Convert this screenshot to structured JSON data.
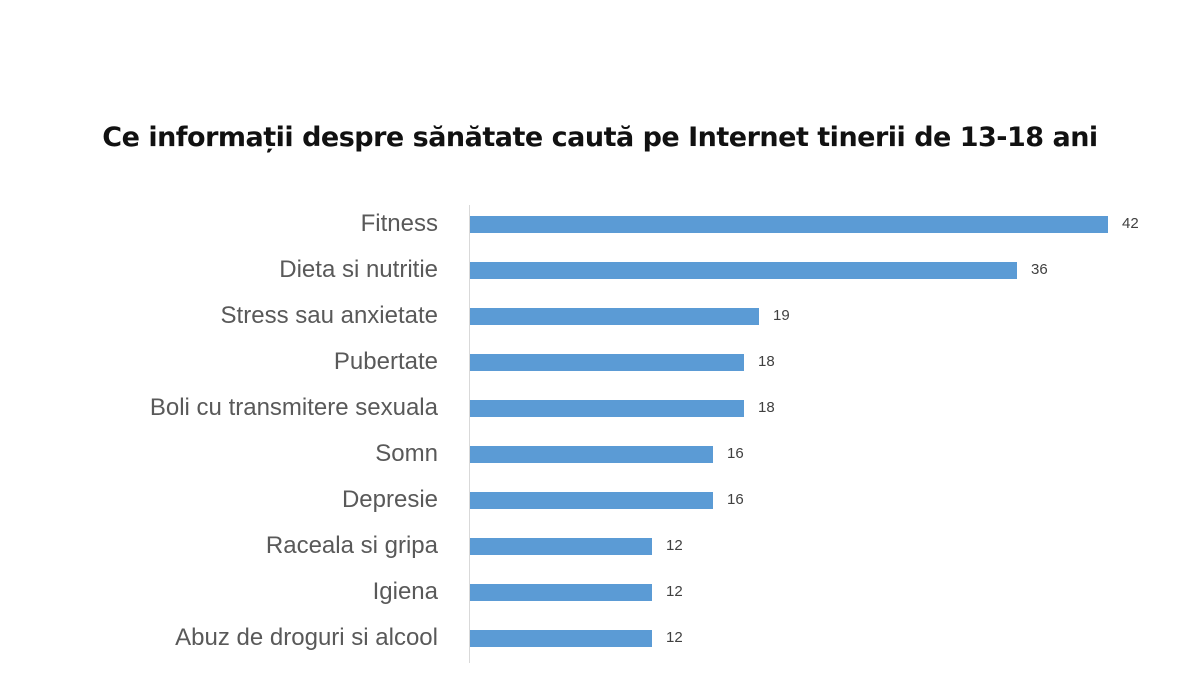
{
  "chart_data": {
    "type": "bar",
    "orientation": "horizontal",
    "title": "Ce informații despre sănătate caută pe Internet tinerii de 13-18 ani",
    "categories": [
      "Fitness",
      "Dieta si nutritie",
      "Stress sau anxietate",
      "Pubertate",
      "Boli cu transmitere sexuala",
      "Somn",
      "Depresie",
      "Raceala si gripa",
      "Igiena",
      "Abuz de droguri si alcool"
    ],
    "values": [
      42,
      36,
      19,
      18,
      18,
      16,
      16,
      12,
      12,
      12
    ],
    "xlabel": "",
    "ylabel": "",
    "xlim": [
      0,
      45
    ],
    "grid": false,
    "legend": null,
    "data_labels": true,
    "bar_color": "#5b9bd5"
  },
  "labels": {
    "title": "Ce informații despre sănătate caută pe Internet tinerii de 13-18 ani",
    "rows": [
      {
        "cat": "Fitness",
        "val": "42"
      },
      {
        "cat": "Dieta si nutritie",
        "val": "36"
      },
      {
        "cat": "Stress sau anxietate",
        "val": "19"
      },
      {
        "cat": "Pubertate",
        "val": "18"
      },
      {
        "cat": "Boli cu transmitere sexuala",
        "val": "18"
      },
      {
        "cat": "Somn",
        "val": "16"
      },
      {
        "cat": "Depresie",
        "val": "16"
      },
      {
        "cat": "Raceala si gripa",
        "val": "12"
      },
      {
        "cat": "Igiena",
        "val": "12"
      },
      {
        "cat": "Abuz de droguri si alcool",
        "val": "12"
      }
    ]
  }
}
